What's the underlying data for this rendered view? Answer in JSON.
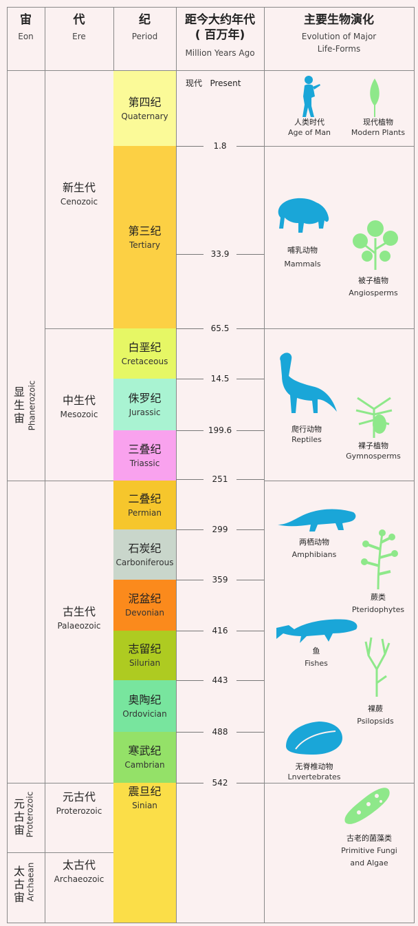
{
  "header": {
    "eon": {
      "cn": "宙",
      "en": "Eon"
    },
    "era": {
      "cn": "代",
      "en": "Ere"
    },
    "period": {
      "cn": "纪",
      "en": "Period"
    },
    "time": {
      "cn1": "距今大约年代",
      "cn2": "( 百万年)",
      "en": "Million Years Ago"
    },
    "life": {
      "cn": "主要生物演化",
      "en1": "Evolution of Major",
      "en2": "Life-Forms"
    }
  },
  "present_label": "现代   Present",
  "eons": [
    {
      "cn": "显生宙",
      "en": "Phanerozoic"
    },
    {
      "cn": "元古宙",
      "en": "Proterozoic"
    },
    {
      "cn": "太古宙",
      "en": "Archaean"
    }
  ],
  "eras": [
    {
      "cn": "新生代",
      "en": "Cenozoic"
    },
    {
      "cn": "中生代",
      "en": "Mesozoic"
    },
    {
      "cn": "古生代",
      "en": "Palaeozoic"
    },
    {
      "cn": "元古代",
      "en": "Proterozoic"
    },
    {
      "cn": "太古代",
      "en": "Archaeozoic"
    }
  ],
  "periods": [
    {
      "cn": "第四纪",
      "en": "Quaternary",
      "color": "#fbfa98"
    },
    {
      "cn": "第三纪",
      "en": "Tertiary",
      "color": "#fcd044"
    },
    {
      "cn": "白垩纪",
      "en": "Cretaceous",
      "color": "#e6f765"
    },
    {
      "cn": "侏罗纪",
      "en": "Jurassic",
      "color": "#a9f3d2"
    },
    {
      "cn": "三叠纪",
      "en": "Triassic",
      "color": "#f9a2ee"
    },
    {
      "cn": "二叠纪",
      "en": "Permian",
      "color": "#f6c62c"
    },
    {
      "cn": "石炭纪",
      "en": "Carboniferous",
      "color": "#c9d6cb"
    },
    {
      "cn": "泥盆纪",
      "en": "Devonian",
      "color": "#fb8a1c"
    },
    {
      "cn": "志留纪",
      "en": "Silurian",
      "color": "#aecb21"
    },
    {
      "cn": "奥陶纪",
      "en": "Ordovician",
      "color": "#78e59e"
    },
    {
      "cn": "寒武纪",
      "en": "Cambrian",
      "color": "#94e168"
    },
    {
      "cn": "震旦纪",
      "en": "Sinian",
      "color": "#fbde48"
    }
  ],
  "ticks": [
    "1.8",
    "33.9",
    "65.5",
    "14.5",
    "199.6",
    "251",
    "299",
    "359",
    "416",
    "443",
    "488",
    "542"
  ],
  "life_forms": [
    {
      "cn": "人类时代",
      "en": "Age of Man",
      "icon": "human-icon",
      "color": "#1aa6d8"
    },
    {
      "cn": "现代植物",
      "en": "Modern Plants",
      "icon": "modern-plant-icon",
      "color": "#8ee88a"
    },
    {
      "cn": "哺乳动物",
      "en": "Mammals",
      "icon": "mammal-icon",
      "color": "#1aa6d8"
    },
    {
      "cn": "被子植物",
      "en": "Angiosperms",
      "icon": "angiosperm-icon",
      "color": "#8ee88a"
    },
    {
      "cn": "爬行动物",
      "en": "Reptiles",
      "icon": "reptile-icon",
      "color": "#1aa6d8"
    },
    {
      "cn": "裸子植物",
      "en": "Gymnosperms",
      "icon": "gymnosperm-icon",
      "color": "#8ee88a"
    },
    {
      "cn": "两栖动物",
      "en": "Amphibians",
      "icon": "amphibian-icon",
      "color": "#1aa6d8"
    },
    {
      "cn": "蕨类",
      "en": "Pteridophytes",
      "icon": "fern-icon",
      "color": "#8ee88a"
    },
    {
      "cn": "鱼",
      "en": "Fishes",
      "icon": "fish-icon",
      "color": "#1aa6d8"
    },
    {
      "cn": "裸蕨",
      "en": "Psilopsids",
      "icon": "psilopsid-icon",
      "color": "#8ee88a"
    },
    {
      "cn": "无脊椎动物",
      "en": "Lnvertebrates",
      "icon": "trilobite-icon",
      "color": "#1aa6d8"
    },
    {
      "cn": "古老的菌藻类",
      "en": "Primitive Fungi",
      "en2": "and Algae",
      "icon": "fungi-algae-icon",
      "color": "#8ee88a"
    }
  ]
}
